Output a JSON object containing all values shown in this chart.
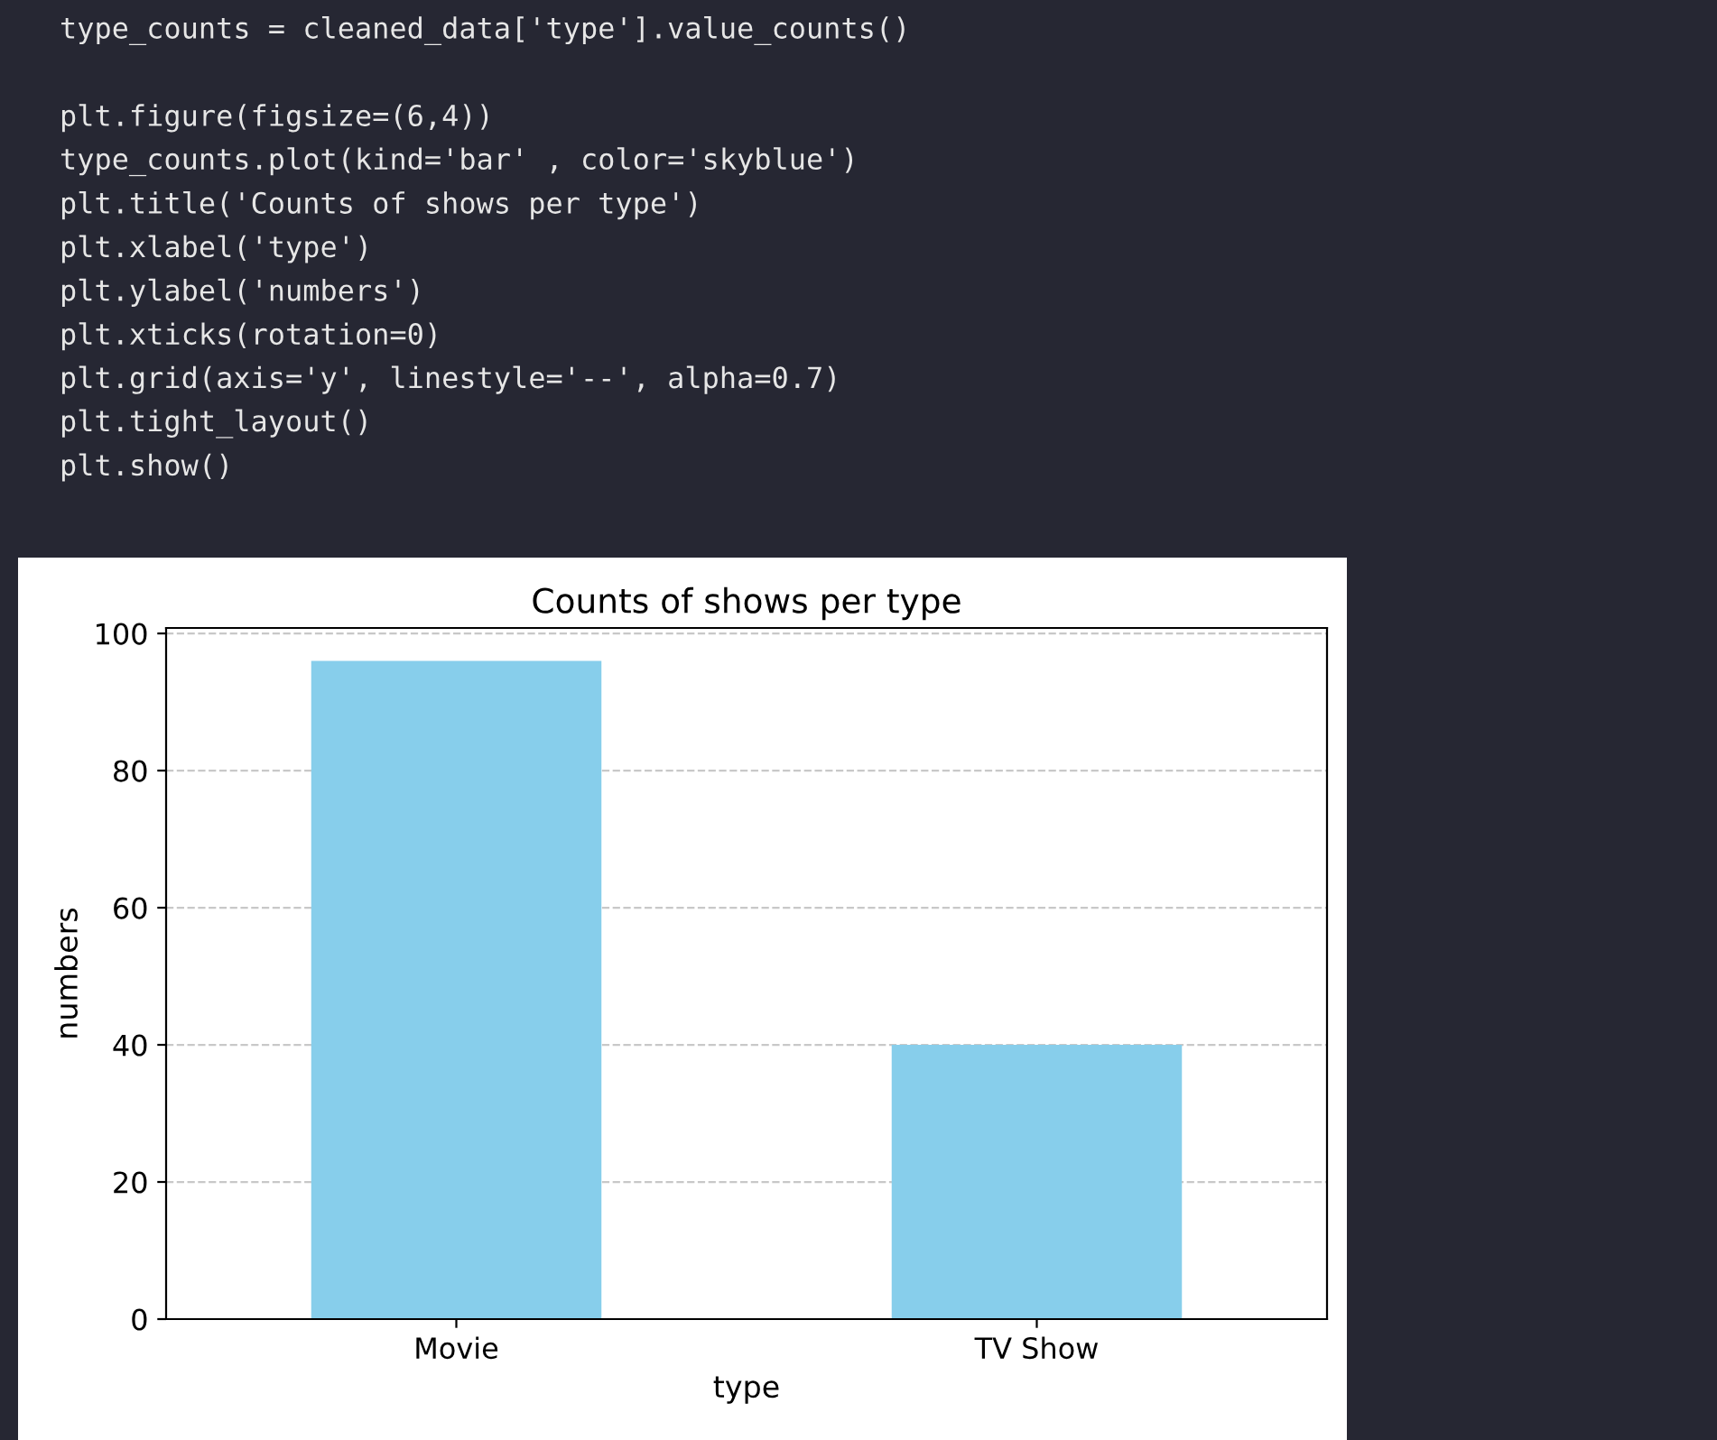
{
  "chart_data": {
    "type": "bar",
    "title": "Counts of shows per type",
    "xlabel": "type",
    "ylabel": "numbers",
    "categories": [
      "Movie",
      "TV Show"
    ],
    "values": [
      96,
      40
    ],
    "color": "#87ceeb",
    "ylim": [
      0,
      100.8
    ],
    "yticks": [
      0,
      20,
      40,
      60,
      80,
      100
    ],
    "grid": "y",
    "annotations": [
      "type_counts = cleaned_data['type'].value_counts()",
      "plt.figure(figsize=(6,4))",
      "type_counts.plot(kind='bar' , color='skyblue')",
      "plt.title('Counts of shows per type')",
      "plt.xlabel('type')",
      "plt.ylabel('numbers')",
      "plt.xticks(rotation=0)",
      "plt.grid(axis='y', linestyle='--', alpha=0.7)",
      "plt.tight_layout()",
      "plt.show()"
    ]
  }
}
